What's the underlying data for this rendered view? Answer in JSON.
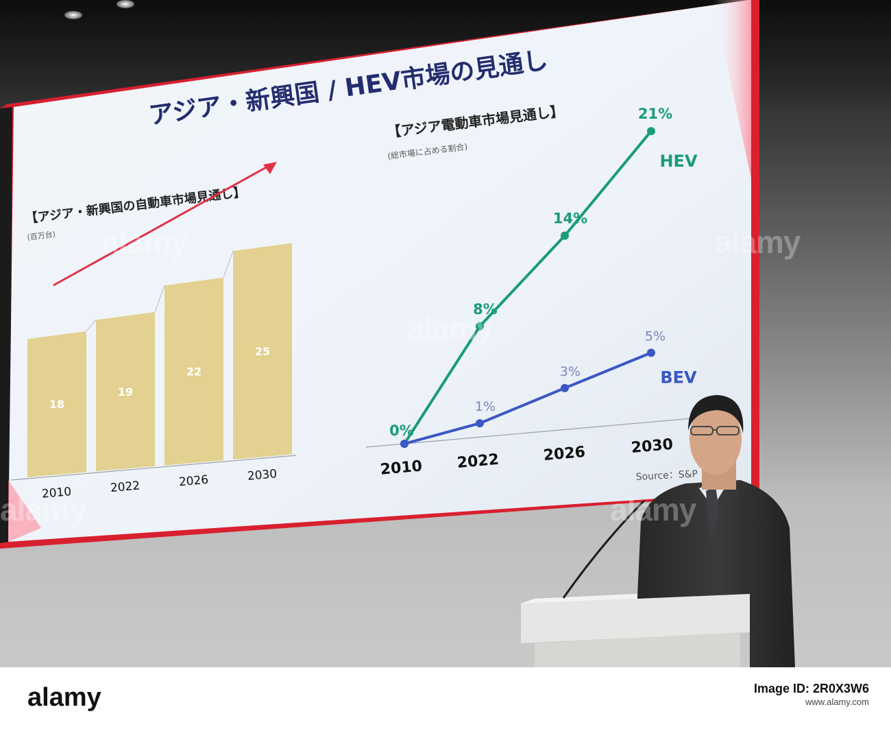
{
  "slide": {
    "main_title": "アジア・新興国 / HEV市場の見通し",
    "left_chart_title": "【アジア・新興国の自動車市場見通し】",
    "left_chart_unit": "(百万台)",
    "right_chart_title": "【アジア電動車市場見通し】",
    "right_chart_unit": "(総市場に占める割合)",
    "source": "Source：S&P"
  },
  "chart_data": [
    {
      "type": "bar",
      "title": "【アジア・新興国の自動車市場見通し】",
      "ylabel": "(百万台)",
      "categories": [
        "2010",
        "2022",
        "2026",
        "2030"
      ],
      "values": [
        18,
        19,
        22,
        25
      ],
      "value_labels": [
        "18",
        "19",
        "22",
        "25"
      ],
      "colors": {
        "bar": "#e2d190",
        "arrow": "#e03246"
      }
    },
    {
      "type": "line",
      "title": "【アジア電動車市場見通し】",
      "ylabel": "(総市場に占める割合)",
      "categories": [
        "2010",
        "2022",
        "2026",
        "2030"
      ],
      "series": [
        {
          "name": "HEV",
          "values": [
            0,
            8,
            14,
            21
          ],
          "labels": [
            "0%",
            "8%",
            "14%",
            "21%"
          ],
          "color": "#1a9b7a"
        },
        {
          "name": "BEV",
          "values": [
            0,
            1,
            3,
            5
          ],
          "labels": [
            "",
            "1%",
            "3%",
            "5%"
          ],
          "color": "#3a57c4"
        }
      ]
    }
  ],
  "watermark": {
    "brand": "alamy",
    "overlay_text": "alamy",
    "image_id_line": "Image ID: 2R0X3W6",
    "url_line": "www.alamy.com"
  }
}
